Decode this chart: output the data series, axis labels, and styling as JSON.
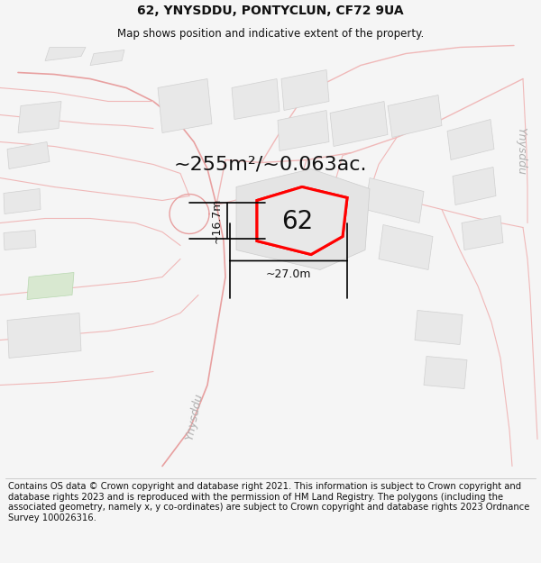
{
  "title": "62, YNYSDDU, PONTYCLUN, CF72 9UA",
  "subtitle": "Map shows position and indicative extent of the property.",
  "area_text": "~255m²/~0.063ac.",
  "plot_label": "62",
  "dim_width": "~27.0m",
  "dim_height": "~16.7m",
  "street_label_bottom": "Ynysddu",
  "street_label_right": "Ynysddu",
  "footer": "Contains OS data © Crown copyright and database right 2021. This information is subject to Crown copyright and database rights 2023 and is reproduced with the permission of HM Land Registry. The polygons (including the associated geometry, namely x, y co-ordinates) are subject to Crown copyright and database rights 2023 Ordnance Survey 100026316.",
  "bg_color": "#f5f5f5",
  "map_bg": "#ffffff",
  "road_color": "#f0b8b8",
  "road_color2": "#e8a0a0",
  "building_fill": "#e8e8e8",
  "building_edge": "#d0d0d0",
  "plot_fill": "#e8e8e8",
  "plot_edge": "#ff0000",
  "green_fill": "#d8e8d0",
  "title_fontsize": 10,
  "subtitle_fontsize": 8.5,
  "footer_fontsize": 7.2,
  "area_fontsize": 16,
  "label_fontsize": 20,
  "dim_fontsize": 9,
  "street_fontsize": 9
}
